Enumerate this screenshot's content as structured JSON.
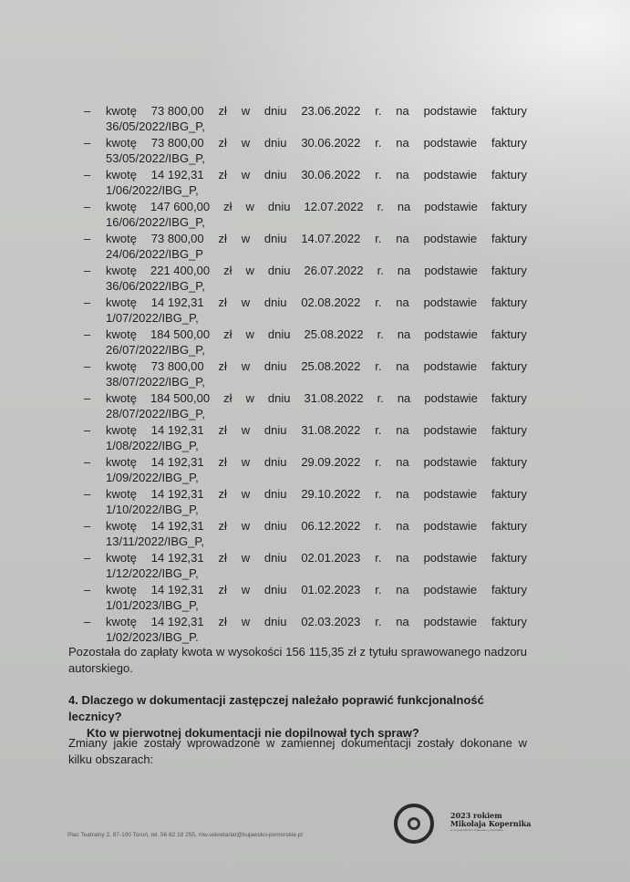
{
  "payments": [
    {
      "label": "kwotę",
      "amount": "73 800,00",
      "currency": "zł",
      "w": "w",
      "dniu": "dniu",
      "date": "23.06.2022",
      "r": "r.",
      "na": "na",
      "podstawie": "podstawie",
      "faktury": "faktury",
      "invoice": "36/05/2022/IBG_P,"
    },
    {
      "label": "kwotę",
      "amount": "73 800,00",
      "currency": "zł",
      "w": "w",
      "dniu": "dniu",
      "date": "30.06.2022",
      "r": "r.",
      "na": "na",
      "podstawie": "podstawie",
      "faktury": "faktury",
      "invoice": "53/05/2022/IBG_P,"
    },
    {
      "label": "kwotę",
      "amount": "14 192,31",
      "currency": "zł",
      "w": "w",
      "dniu": "dniu",
      "date": "30.06.2022",
      "r": "r.",
      "na": "na",
      "podstawie": "podstawie",
      "faktury": "faktury",
      "invoice": "1/06/2022/IBG_P,"
    },
    {
      "label": "kwotę",
      "amount": "147 600,00",
      "currency": "zł",
      "w": "w",
      "dniu": "dniu",
      "date": "12.07.2022",
      "r": "r.",
      "na": "na",
      "podstawie": "podstawie",
      "faktury": "faktury",
      "invoice": "16/06/2022/IBG_P,"
    },
    {
      "label": "kwotę",
      "amount": "73 800,00",
      "currency": "zł",
      "w": "w",
      "dniu": "dniu",
      "date": "14.07.2022",
      "r": "r.",
      "na": "na",
      "podstawie": "podstawie",
      "faktury": "faktury",
      "invoice": "24/06/2022/IBG_P"
    },
    {
      "label": "kwotę",
      "amount": "221 400,00",
      "currency": "zł",
      "w": "w",
      "dniu": "dniu",
      "date": "26.07.2022",
      "r": "r.",
      "na": "na",
      "podstawie": "podstawie",
      "faktury": "faktury",
      "invoice": "36/06/2022/IBG_P,"
    },
    {
      "label": "kwotę",
      "amount": "14 192,31",
      "currency": "zł",
      "w": "w",
      "dniu": "dniu",
      "date": "02.08.2022",
      "r": "r.",
      "na": "na",
      "podstawie": "podstawie",
      "faktury": "faktury",
      "invoice": "1/07/2022/IBG_P,"
    },
    {
      "label": "kwotę",
      "amount": "184 500,00",
      "currency": "zł",
      "w": "w",
      "dniu": "dniu",
      "date": "25.08.2022",
      "r": "r.",
      "na": "na",
      "podstawie": "podstawie",
      "faktury": "faktury",
      "invoice": "26/07/2022/IBG_P,"
    },
    {
      "label": "kwotę",
      "amount": "73 800,00",
      "currency": "zł",
      "w": "w",
      "dniu": "dniu",
      "date": "25.08.2022",
      "r": "r.",
      "na": "na",
      "podstawie": "podstawie",
      "faktury": "faktury",
      "invoice": "38/07/2022/IBG_P,"
    },
    {
      "label": "kwotę",
      "amount": "184 500,00",
      "currency": "zł",
      "w": "w",
      "dniu": "dniu",
      "date": "31.08.2022",
      "r": "r.",
      "na": "na",
      "podstawie": "podstawie",
      "faktury": "faktury",
      "invoice": "28/07/2022/IBG_P,"
    },
    {
      "label": "kwotę",
      "amount": "14 192,31",
      "currency": "zł",
      "w": "w",
      "dniu": "dniu",
      "date": "31.08.2022",
      "r": "r.",
      "na": "na",
      "podstawie": "podstawie",
      "faktury": "faktury",
      "invoice": "1/08/2022/IBG_P,"
    },
    {
      "label": "kwotę",
      "amount": "14 192,31",
      "currency": "zł",
      "w": "w",
      "dniu": "dniu",
      "date": "29.09.2022",
      "r": "r.",
      "na": "na",
      "podstawie": "podstawie",
      "faktury": "faktury",
      "invoice": "1/09/2022/IBG_P,"
    },
    {
      "label": "kwotę",
      "amount": "14 192,31",
      "currency": "zł",
      "w": "w",
      "dniu": "dniu",
      "date": "29.10.2022",
      "r": "r.",
      "na": "na",
      "podstawie": "podstawie",
      "faktury": "faktury",
      "invoice": "1/10/2022/IBG_P,"
    },
    {
      "label": "kwotę",
      "amount": "14 192,31",
      "currency": "zł",
      "w": "w",
      "dniu": "dniu",
      "date": "06.12.2022",
      "r": "r.",
      "na": "na",
      "podstawie": "podstawie",
      "faktury": "faktury",
      "invoice": "13/11/2022/IBG_P,"
    },
    {
      "label": "kwotę",
      "amount": "14 192,31",
      "currency": "zł",
      "w": "w",
      "dniu": "dniu",
      "date": "02.01.2023",
      "r": "r.",
      "na": "na",
      "podstawie": "podstawie",
      "faktury": "faktury",
      "invoice": "1/12/2022/IBG_P,"
    },
    {
      "label": "kwotę",
      "amount": "14 192,31",
      "currency": "zł",
      "w": "w",
      "dniu": "dniu",
      "date": "01.02.2023",
      "r": "r.",
      "na": "na",
      "podstawie": "podstawie",
      "faktury": "faktury",
      "invoice": "1/01/2023/IBG_P,"
    },
    {
      "label": "kwotę",
      "amount": "14 192,31",
      "currency": "zł",
      "w": "w",
      "dniu": "dniu",
      "date": "02.03.2023",
      "r": "r.",
      "na": "na",
      "podstawie": "podstawie",
      "faktury": "faktury",
      "invoice": "1/02/2023/IBG_P."
    }
  ],
  "bullet": "–",
  "remaining": "Pozostała do zapłaty kwota w wysokości 156 115,35 zł z tytułu sprawowanego nadzoru autorskiego.",
  "question": {
    "line1": "4. Dlaczego w dokumentacji zastępczej należało poprawić funkcjonalność lecznicy?",
    "line2": "Kto w pierwotnej dokumentacji nie dopilnował tych spraw?"
  },
  "changes": "Zmiany jakie zostały wprowadzone w zamiennej dokumentacji zostały dokonane w kilku obszarach:",
  "footer": {
    "address": "Plac Teatralny 2, 87-100 Toruń, tel. 56 62 18 255, mw.sekretariat@kujawsko-pomorskie.pl",
    "logo_line1": "2023 rokiem",
    "logo_line2": "Mikołaja Kopernika",
    "logo_line3": "w województwie kujawsko-pomorskim"
  }
}
